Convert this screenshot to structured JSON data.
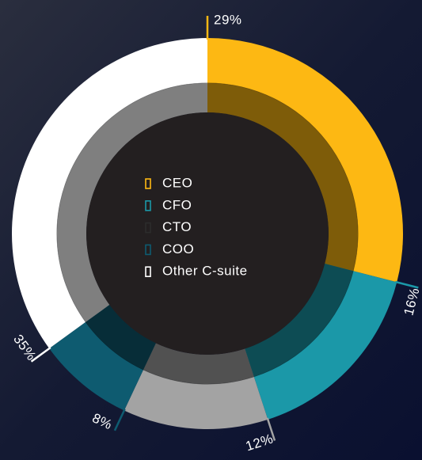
{
  "chart_data": {
    "type": "donut",
    "categories": [
      "CEO",
      "CFO",
      "CTO",
      "COO",
      "Other C-suite"
    ],
    "values": [
      29,
      16,
      12,
      8,
      35
    ],
    "value_labels": [
      "29%",
      "16%",
      "12%",
      "8%",
      "35%"
    ],
    "colors": [
      "#fdb813",
      "#1b98a8",
      "#a3a3a3",
      "#0e5b70",
      "#ffffff"
    ],
    "legend_colors": [
      "#fdb813",
      "#1b98a8",
      "#2c2c2c",
      "#0e5b70",
      "#ffffff"
    ],
    "legend": "center"
  }
}
